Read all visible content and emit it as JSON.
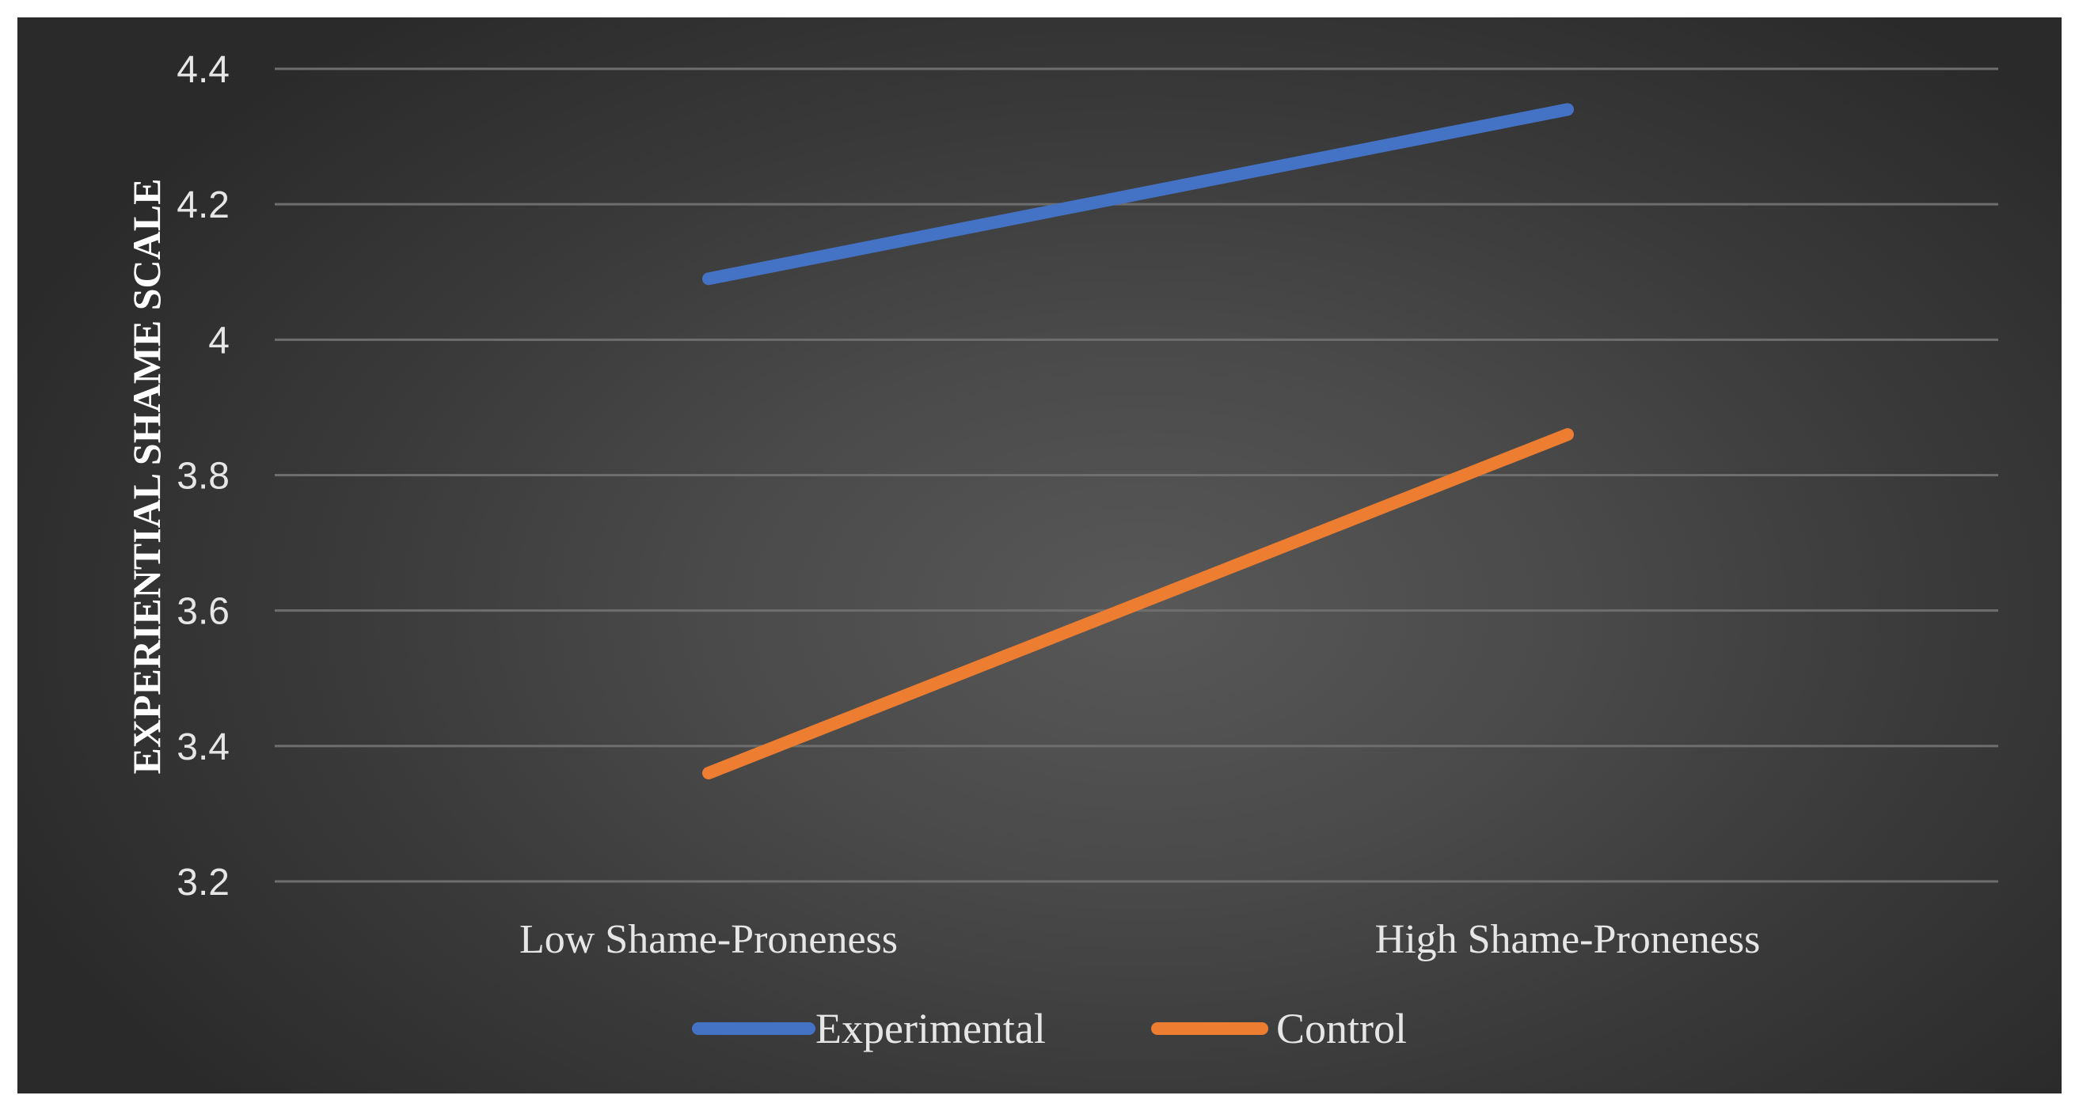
{
  "chart_data": {
    "type": "line",
    "categories": [
      "Low Shame-Proneness",
      "High Shame-Proneness"
    ],
    "series": [
      {
        "name": "Experimental",
        "values": [
          4.09,
          4.34
        ],
        "color": "#4472C4"
      },
      {
        "name": "Control",
        "values": [
          3.36,
          3.86
        ],
        "color": "#ED7D31"
      }
    ],
    "ylabel": "EXPERIENTIAL SHAME SCALE",
    "ylim": [
      3.2,
      4.4
    ],
    "yticks": [
      "3.2",
      "3.4",
      "3.6",
      "3.8",
      "4",
      "4.2",
      "4.4"
    ],
    "grid": true,
    "legend_position": "bottom"
  }
}
